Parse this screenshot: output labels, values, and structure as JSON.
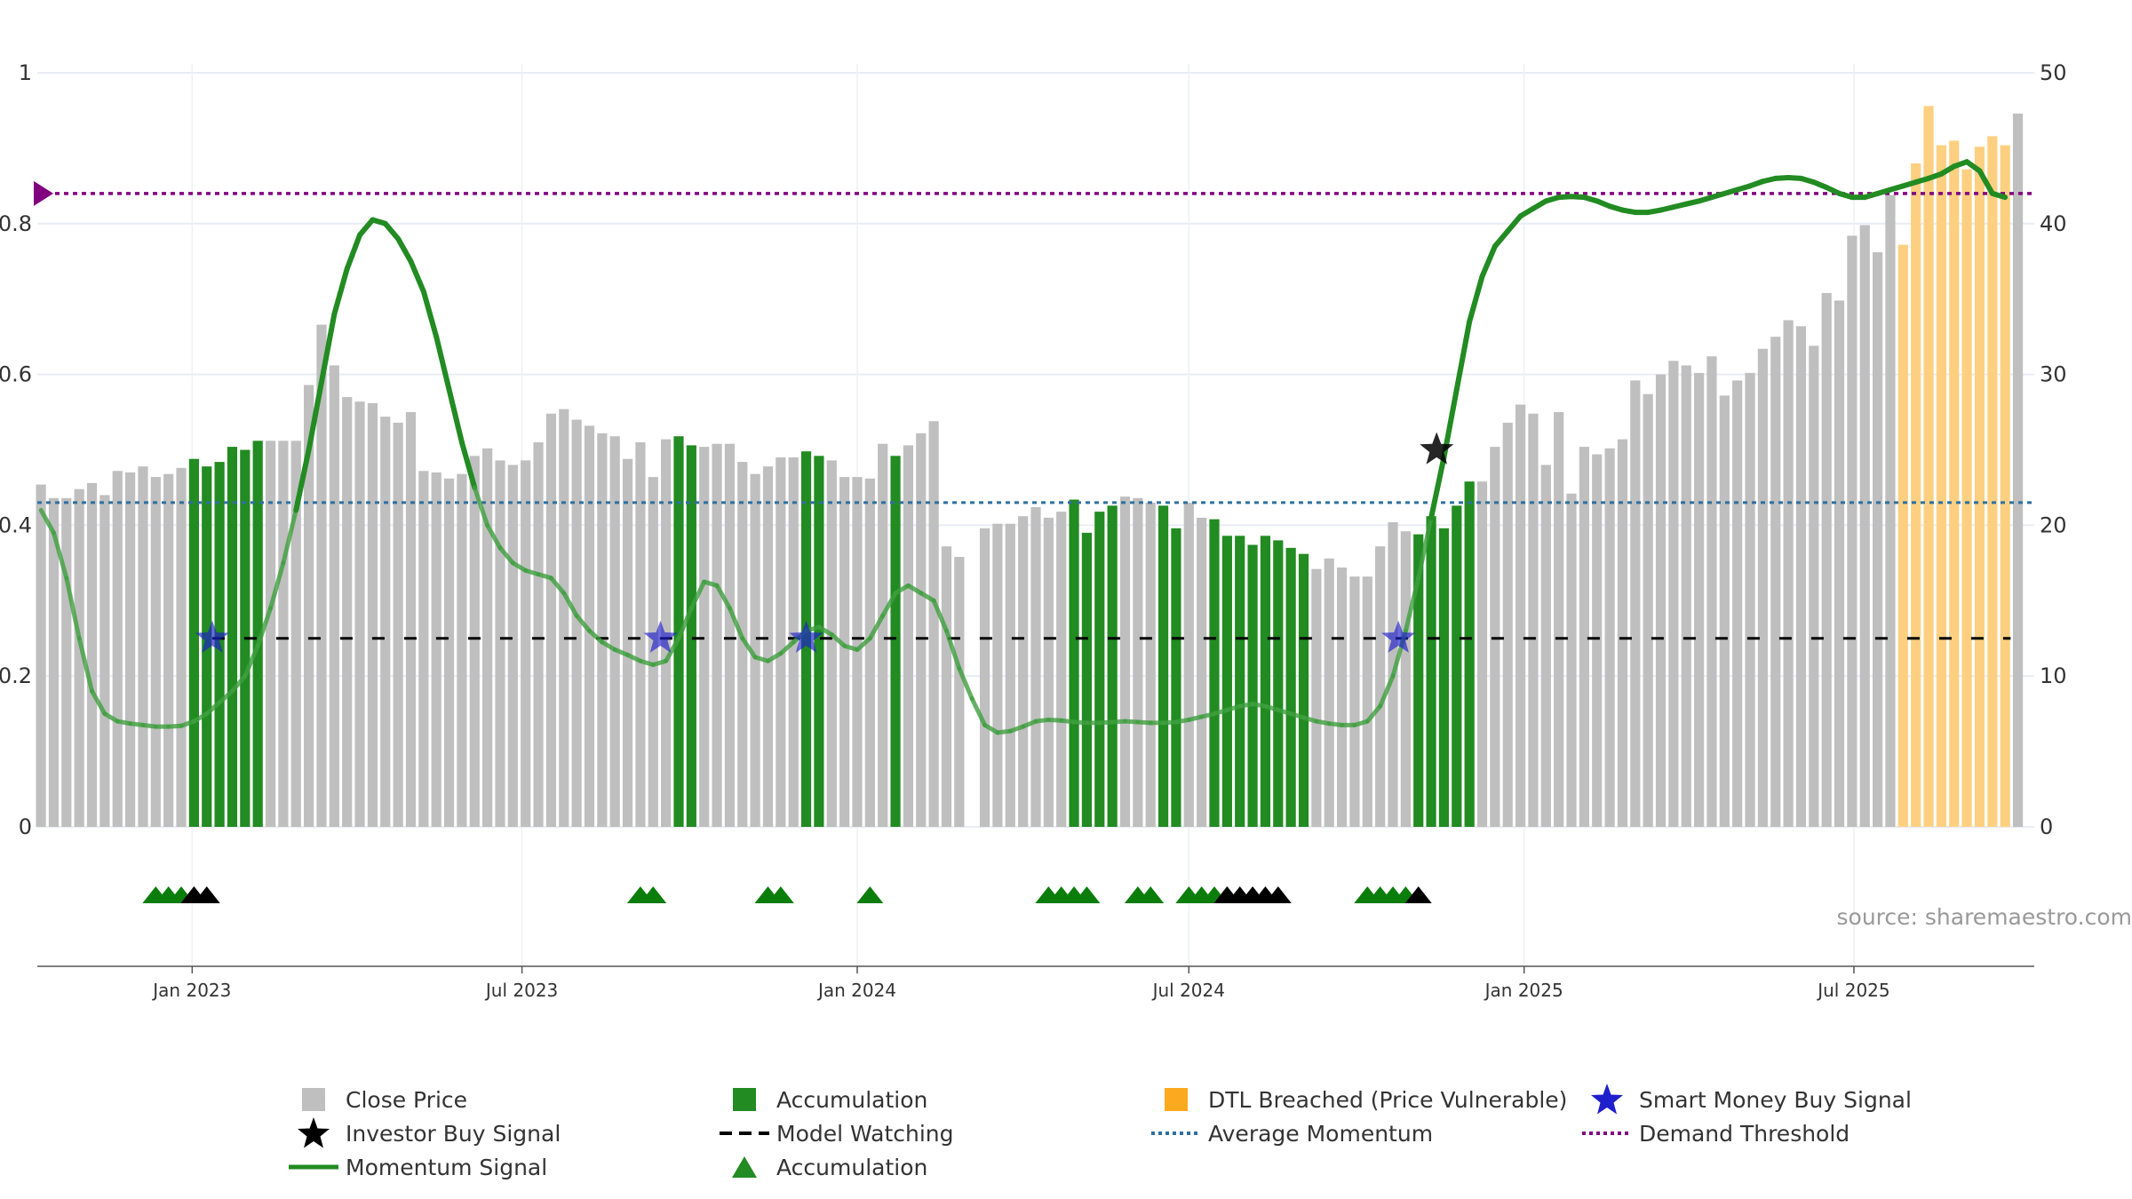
{
  "chart_data": {
    "type": "bar",
    "source_note": "source: sharemaestro.com",
    "x_ticks": [
      {
        "label": "Jan 2023",
        "date": "2023-01-01"
      },
      {
        "label": "Jul 2023",
        "date": "2023-07-01"
      },
      {
        "label": "Jan 2024",
        "date": "2024-01-01"
      },
      {
        "label": "Jul 2024",
        "date": "2024-07-01"
      },
      {
        "label": "Jan 2025",
        "date": "2025-01-01"
      },
      {
        "label": "Jul 2025",
        "date": "2025-07-01"
      }
    ],
    "x_range": [
      "2022-10-08",
      "2025-10-08"
    ],
    "y_left": {
      "range": [
        0,
        1
      ],
      "ticks": [
        {
          "label": "0",
          "value": 0
        },
        {
          "label": "0.2",
          "value": 0.2
        },
        {
          "label": "0.4",
          "value": 0.4
        },
        {
          "label": "0.6",
          "value": 0.6
        },
        {
          "label": "0.8",
          "value": 0.8
        },
        {
          "label": "1",
          "value": 1
        }
      ]
    },
    "y_right": {
      "range": [
        0,
        50
      ],
      "ticks": [
        {
          "label": "0",
          "value": 0
        },
        {
          "label": "10",
          "value": 10
        },
        {
          "label": "20",
          "value": 20
        },
        {
          "label": "30",
          "value": 30
        },
        {
          "label": "40",
          "value": 40
        },
        {
          "label": "50",
          "value": 50
        }
      ]
    },
    "grid": true,
    "colors": {
      "close": "#bfbfbf",
      "accumulation": "#228b22",
      "dtl": "#fdd081",
      "momentum": "#228b22",
      "average": "#2f6f9f",
      "threshold": "#800080",
      "smart_money": "#1f1fcc",
      "investor": "#000000",
      "watching": "#000000",
      "grid": "#e8ecf4",
      "axis": "#555555"
    },
    "bars": {
      "start_date": "2022-10-10",
      "period_days": 7,
      "values": [
        22.7,
        21.8,
        21.8,
        22.4,
        22.8,
        22.0,
        23.6,
        23.5,
        23.9,
        23.2,
        23.4,
        23.8,
        24.4,
        23.9,
        24.2,
        25.2,
        25.0,
        25.6,
        25.6,
        25.6,
        25.6,
        29.3,
        33.3,
        30.6,
        28.5,
        28.2,
        28.1,
        27.2,
        26.8,
        27.5,
        23.6,
        23.5,
        23.1,
        23.4,
        24.6,
        25.1,
        24.3,
        24.0,
        24.3,
        25.5,
        27.4,
        27.7,
        27.0,
        26.6,
        26.1,
        25.9,
        24.4,
        25.5,
        23.2,
        25.7,
        25.9,
        25.3,
        25.2,
        25.4,
        25.4,
        24.2,
        23.4,
        23.9,
        24.5,
        24.5,
        24.9,
        24.6,
        24.3,
        23.2,
        23.2,
        23.1,
        25.4,
        24.6,
        25.3,
        26.1,
        26.9,
        18.6,
        17.9,
        0,
        19.8,
        20.1,
        20.1,
        20.6,
        21.2,
        20.5,
        20.9,
        21.7,
        19.5,
        20.9,
        21.3,
        21.9,
        21.8,
        21.5,
        21.3,
        19.8,
        21.5,
        20.5,
        20.4,
        19.3,
        19.3,
        18.7,
        19.3,
        19.0,
        18.5,
        18.1,
        17.1,
        17.8,
        17.2,
        16.6,
        16.6,
        18.6,
        20.2,
        19.6,
        19.4,
        20.6,
        19.8,
        21.3,
        22.9,
        22.9,
        25.2,
        26.8,
        28.0,
        27.4,
        24.0,
        27.5,
        22.1,
        25.2,
        24.7,
        25.1,
        25.7,
        29.6,
        28.7,
        30.0,
        30.9,
        30.6,
        30.1,
        31.2,
        28.6,
        29.6,
        30.1,
        31.7,
        32.5,
        33.6,
        33.2,
        31.9,
        35.4,
        34.9,
        39.2,
        39.9,
        38.1,
        41.9,
        38.6,
        44.0,
        47.8,
        45.2,
        45.5,
        43.6,
        45.1,
        45.8,
        45.2,
        47.3
      ],
      "types": [
        "c",
        "c",
        "c",
        "c",
        "c",
        "c",
        "c",
        "c",
        "c",
        "c",
        "c",
        "c",
        "a",
        "a",
        "a",
        "a",
        "a",
        "a",
        "c",
        "c",
        "c",
        "c",
        "c",
        "c",
        "c",
        "c",
        "c",
        "c",
        "c",
        "c",
        "c",
        "c",
        "c",
        "c",
        "c",
        "c",
        "c",
        "c",
        "c",
        "c",
        "c",
        "c",
        "c",
        "c",
        "c",
        "c",
        "c",
        "c",
        "c",
        "c",
        "a",
        "a",
        "c",
        "c",
        "c",
        "c",
        "c",
        "c",
        "c",
        "c",
        "a",
        "a",
        "c",
        "c",
        "c",
        "c",
        "c",
        "a",
        "c",
        "c",
        "c",
        "c",
        "c",
        "c",
        "c",
        "c",
        "c",
        "c",
        "c",
        "c",
        "c",
        "a",
        "a",
        "a",
        "a",
        "c",
        "c",
        "c",
        "a",
        "a",
        "c",
        "c",
        "a",
        "a",
        "a",
        "a",
        "a",
        "a",
        "a",
        "a",
        "c",
        "c",
        "c",
        "c",
        "c",
        "c",
        "c",
        "c",
        "a",
        "a",
        "a",
        "a",
        "a",
        "c",
        "c",
        "c",
        "c",
        "c",
        "c",
        "c",
        "c",
        "c",
        "c",
        "c",
        "c",
        "c",
        "c",
        "c",
        "c",
        "c",
        "c",
        "c",
        "c",
        "c",
        "c",
        "c",
        "c",
        "c",
        "c",
        "c",
        "c",
        "c",
        "c",
        "c",
        "c",
        "c",
        "d",
        "d",
        "d",
        "d",
        "d",
        "d",
        "d",
        "d",
        "d"
      ]
    },
    "momentum_signal": {
      "start_date": "2022-10-10",
      "period_days": 7,
      "values": [
        0.42,
        0.39,
        0.33,
        0.25,
        0.18,
        0.15,
        0.14,
        0.137,
        0.135,
        0.133,
        0.133,
        0.134,
        0.14,
        0.15,
        0.165,
        0.18,
        0.2,
        0.24,
        0.29,
        0.35,
        0.42,
        0.5,
        0.59,
        0.68,
        0.74,
        0.785,
        0.805,
        0.8,
        0.78,
        0.75,
        0.71,
        0.65,
        0.58,
        0.51,
        0.45,
        0.4,
        0.37,
        0.35,
        0.34,
        0.335,
        0.33,
        0.31,
        0.28,
        0.26,
        0.245,
        0.235,
        0.228,
        0.22,
        0.215,
        0.22,
        0.25,
        0.29,
        0.325,
        0.32,
        0.29,
        0.25,
        0.225,
        0.22,
        0.23,
        0.245,
        0.26,
        0.265,
        0.255,
        0.24,
        0.235,
        0.25,
        0.28,
        0.31,
        0.32,
        0.31,
        0.3,
        0.26,
        0.21,
        0.17,
        0.135,
        0.125,
        0.127,
        0.133,
        0.14,
        0.142,
        0.141,
        0.139,
        0.138,
        0.138,
        0.139,
        0.14,
        0.139,
        0.138,
        0.138,
        0.139,
        0.142,
        0.146,
        0.15,
        0.155,
        0.16,
        0.163,
        0.16,
        0.155,
        0.15,
        0.145,
        0.14,
        0.137,
        0.135,
        0.135,
        0.14,
        0.16,
        0.2,
        0.26,
        0.33,
        0.41,
        0.49,
        0.58,
        0.67,
        0.73,
        0.77,
        0.79,
        0.81,
        0.82,
        0.83,
        0.835,
        0.836,
        0.835,
        0.83,
        0.823,
        0.818,
        0.815,
        0.815,
        0.818,
        0.822,
        0.826,
        0.83,
        0.835,
        0.84,
        0.845,
        0.85,
        0.856,
        0.86,
        0.861,
        0.86,
        0.855,
        0.848,
        0.84,
        0.835,
        0.835,
        0.84,
        0.845,
        0.85,
        0.855,
        0.86,
        0.866,
        0.876,
        0.882,
        0.87,
        0.84,
        0.835
      ]
    },
    "average_momentum": 0.43,
    "demand_threshold": 0.84,
    "model_watching": {
      "level": 0.25,
      "from": "2023-01-12",
      "to": "2025-09-25"
    },
    "smart_money_buy_signals": [
      {
        "date": "2023-01-12",
        "value": 0.25
      },
      {
        "date": "2023-09-15",
        "value": 0.25
      },
      {
        "date": "2023-12-04",
        "value": 0.25
      },
      {
        "date": "2024-10-24",
        "value": 0.25
      }
    ],
    "investor_buy_signals": [
      {
        "date": "2024-11-14",
        "value": 0.5
      }
    ],
    "accumulation_markers": {
      "green": [
        "2022-12-12",
        "2022-12-19",
        "2022-12-26",
        "2023-01-02",
        "2023-09-04",
        "2023-09-11",
        "2023-11-13",
        "2023-11-20",
        "2024-01-08",
        "2024-04-15",
        "2024-04-22",
        "2024-04-29",
        "2024-05-06",
        "2024-06-03",
        "2024-06-10",
        "2024-07-01",
        "2024-07-08",
        "2024-07-15",
        "2024-07-22",
        "2024-10-07",
        "2024-10-14",
        "2024-10-21",
        "2024-10-28"
      ],
      "black": [
        "2023-01-02",
        "2023-01-09",
        "2024-07-22",
        "2024-07-29",
        "2024-08-05",
        "2024-08-12",
        "2024-08-19",
        "2024-11-04"
      ]
    },
    "legend": [
      {
        "key": "close",
        "label": "Close Price"
      },
      {
        "key": "accumulation",
        "label": "Accumulation"
      },
      {
        "key": "dtl",
        "label": "DTL Breached (Price Vulnerable)"
      },
      {
        "key": "smart_money",
        "label": "Smart Money Buy Signal"
      },
      {
        "key": "investor",
        "label": "Investor Buy Signal"
      },
      {
        "key": "watching",
        "label": "Model Watching"
      },
      {
        "key": "average",
        "label": "Average Momentum"
      },
      {
        "key": "threshold",
        "label": "Demand Threshold"
      },
      {
        "key": "momentum",
        "label": "Momentum Signal"
      },
      {
        "key": "accum_marker",
        "label": "Accumulation"
      }
    ]
  }
}
